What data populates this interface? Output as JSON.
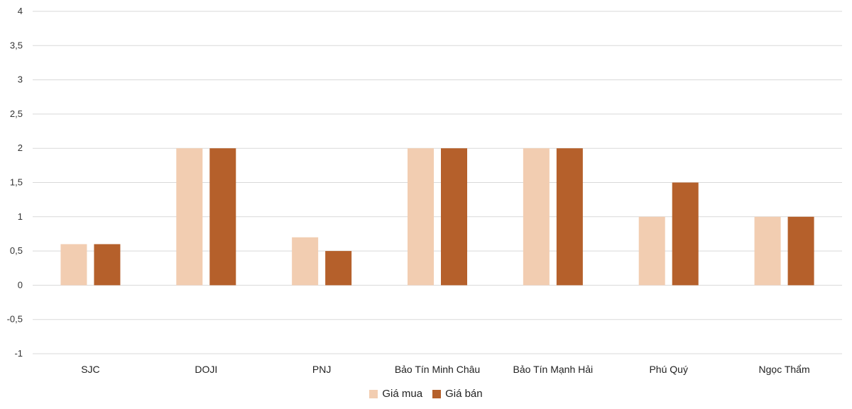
{
  "chart_data": {
    "type": "bar",
    "categories": [
      "SJC",
      "DOJI",
      "PNJ",
      "Bảo Tín Minh Châu",
      "Bảo Tín Mạnh Hải",
      "Phú Quý",
      "Ngọc Thẩm"
    ],
    "series": [
      {
        "name": "Giá mua",
        "color": "#f2cdb1",
        "values": [
          0.6,
          2,
          0.7,
          2,
          2,
          1,
          1
        ]
      },
      {
        "name": "Giá bán",
        "color": "#b5602b",
        "values": [
          0.6,
          2,
          0.5,
          2,
          2,
          1.5,
          1
        ]
      }
    ],
    "yticks": [
      "4",
      "3,5",
      "3",
      "2,5",
      "2",
      "1,5",
      "1",
      "0,5",
      "0",
      "-0,5",
      "-1"
    ],
    "ylim": [
      -1,
      4
    ],
    "grid": true,
    "legend_position": "bottom",
    "title": "",
    "xlabel": "",
    "ylabel": ""
  }
}
